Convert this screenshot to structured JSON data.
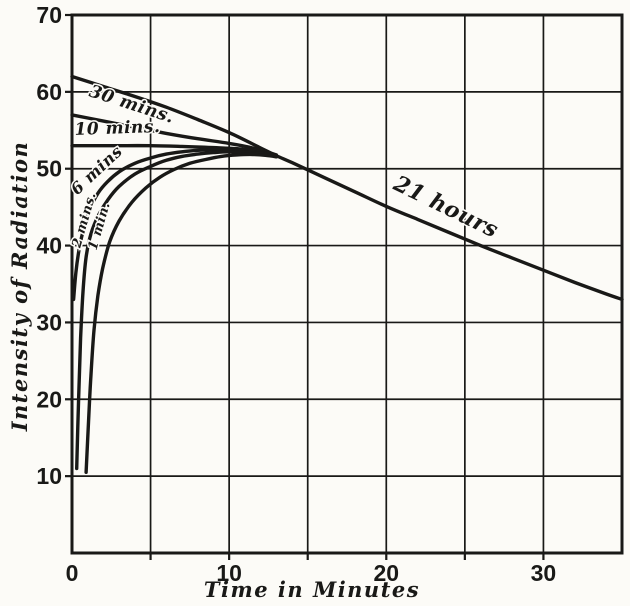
{
  "figure": {
    "paper_color": "#fcfbf7",
    "ink_color": "#191917"
  },
  "chart_data": {
    "type": "line",
    "title": "",
    "xlabel": "Time in Minutes",
    "ylabel": "Intensity of Radiation",
    "xlim": [
      0,
      35
    ],
    "ylim": [
      0,
      70
    ],
    "grid": true,
    "x_tick_labels": [
      0,
      10,
      20,
      30
    ],
    "x_gridlines": [
      5,
      10,
      15,
      20,
      25,
      30
    ],
    "y_tick_labels": [
      10,
      20,
      30,
      40,
      50,
      60,
      70
    ],
    "y_gridlines": [
      10,
      20,
      30,
      40,
      50,
      60
    ],
    "legend_position": "inline-curve-labels",
    "series": [
      {
        "name": "21 hours",
        "points": [
          [
            0,
            62
          ],
          [
            2,
            60.7
          ],
          [
            4,
            59.4
          ],
          [
            6,
            58.0
          ],
          [
            8,
            56.4
          ],
          [
            10,
            54.7
          ],
          [
            12,
            52.7
          ],
          [
            13,
            51.7
          ],
          [
            14,
            50.8
          ],
          [
            16,
            48.9
          ],
          [
            18,
            47.0
          ],
          [
            20,
            45.1
          ],
          [
            22,
            43.4
          ],
          [
            24,
            41.7
          ],
          [
            26,
            40.0
          ],
          [
            28,
            38.4
          ],
          [
            30,
            36.8
          ],
          [
            32,
            35.2
          ],
          [
            34,
            33.7
          ],
          [
            35,
            33.0
          ]
        ]
      },
      {
        "name": "30 mins.",
        "points": [
          [
            0,
            57
          ],
          [
            2,
            56.2
          ],
          [
            4,
            55.4
          ],
          [
            6,
            54.6
          ],
          [
            8,
            53.9
          ],
          [
            10,
            53.3
          ],
          [
            11.5,
            52.7
          ],
          [
            13,
            51.8
          ]
        ]
      },
      {
        "name": "10 mins.",
        "points": [
          [
            0,
            53
          ],
          [
            2.5,
            53
          ],
          [
            5,
            53
          ],
          [
            7,
            52.9
          ],
          [
            9,
            52.75
          ],
          [
            10.5,
            52.6
          ],
          [
            11.8,
            52.3
          ],
          [
            13,
            51.75
          ]
        ]
      },
      {
        "name": "6 mins",
        "points": [
          [
            0.1,
            33
          ],
          [
            0.25,
            36.5
          ],
          [
            0.45,
            39.5
          ],
          [
            0.75,
            42.3
          ],
          [
            1.15,
            44.8
          ],
          [
            1.65,
            46.8
          ],
          [
            2.25,
            48.3
          ],
          [
            3,
            49.6
          ],
          [
            4,
            50.7
          ],
          [
            5,
            51.4
          ],
          [
            6,
            51.9
          ],
          [
            7,
            52.2
          ],
          [
            8,
            52.4
          ],
          [
            9.2,
            52.5
          ],
          [
            10.5,
            52.4
          ],
          [
            11.8,
            52.15
          ],
          [
            13,
            51.7
          ]
        ]
      },
      {
        "name": "2 mins.",
        "points": [
          [
            0.3,
            11
          ],
          [
            0.42,
            20
          ],
          [
            0.55,
            28
          ],
          [
            0.7,
            34
          ],
          [
            0.9,
            38.5
          ],
          [
            1.2,
            41.5
          ],
          [
            1.7,
            44
          ],
          [
            2.3,
            46
          ],
          [
            3,
            47.7
          ],
          [
            4,
            49.3
          ],
          [
            5,
            50.3
          ],
          [
            6,
            51.1
          ],
          [
            7,
            51.6
          ],
          [
            8,
            51.9
          ],
          [
            9,
            52.1
          ],
          [
            10,
            52.2
          ],
          [
            11.2,
            52.1
          ],
          [
            12.1,
            51.95
          ],
          [
            13,
            51.6
          ]
        ]
      },
      {
        "name": "1 min.",
        "points": [
          [
            0.9,
            10.5
          ],
          [
            1.05,
            17
          ],
          [
            1.2,
            23
          ],
          [
            1.4,
            29
          ],
          [
            1.65,
            33.5
          ],
          [
            1.95,
            37
          ],
          [
            2.4,
            40.5
          ],
          [
            3,
            43.2
          ],
          [
            3.8,
            45.6
          ],
          [
            4.7,
            47.5
          ],
          [
            5.6,
            48.9
          ],
          [
            6.5,
            49.9
          ],
          [
            7.5,
            50.7
          ],
          [
            8.5,
            51.2
          ],
          [
            9.5,
            51.6
          ],
          [
            10.5,
            51.8
          ],
          [
            11.5,
            51.85
          ],
          [
            12.3,
            51.75
          ],
          [
            13,
            51.55
          ]
        ]
      }
    ],
    "curve_labels": [
      {
        "text": "30 mins.",
        "x": 3.7,
        "y": 57.7,
        "rotate": 18,
        "size": 17.5
      },
      {
        "text": "10 mins.",
        "x": 2.9,
        "y": 54.6,
        "rotate": -2,
        "size": 17
      },
      {
        "text": "6 mins",
        "x": 1.8,
        "y": 49.3,
        "rotate": -43,
        "size": 16
      },
      {
        "text": "2 mins.",
        "x": 1.02,
        "y": 43.2,
        "rotate": -74,
        "size": 13
      },
      {
        "text": "1 min.",
        "x": 1.98,
        "y": 42.4,
        "rotate": -74,
        "size": 13
      },
      {
        "text": "21 hours",
        "x": 23.6,
        "y": 44.2,
        "rotate": 26,
        "size": 22
      }
    ]
  }
}
